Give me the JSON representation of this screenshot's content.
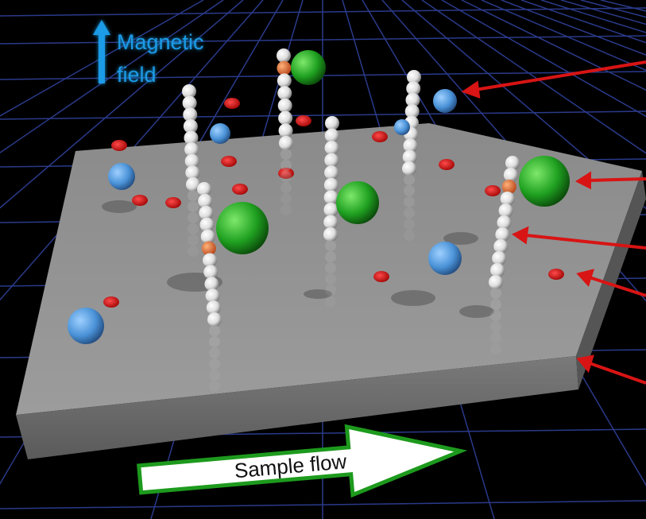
{
  "magnetic_field": {
    "line1": "Magnetic",
    "line2": "field"
  },
  "sample_flow": "Sample flow"
}
